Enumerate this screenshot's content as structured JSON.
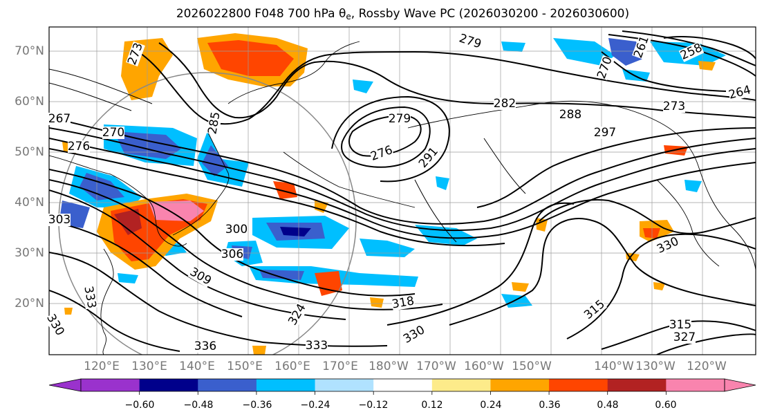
{
  "title": {
    "prefix": "2026022800 F048 700 hPa θ",
    "subscript": "e",
    "suffix": ", Rossby Wave PC (2026030200 - 2026030600)"
  },
  "lat_labels": [
    "70°N",
    "60°N",
    "50°N",
    "40°N",
    "30°N",
    "20°N"
  ],
  "lon_labels": [
    "120°E",
    "130°E",
    "140°E",
    "150°E",
    "160°E",
    "170°E",
    "180°W",
    "170°W",
    "160°W",
    "150°W",
    "140°W",
    "130°W",
    "120°W"
  ],
  "contour_labels": [
    "279",
    "282",
    "288",
    "297",
    "291",
    "276",
    "279",
    "300",
    "306",
    "309",
    "303",
    "267",
    "270",
    "276",
    "285",
    "273",
    "318",
    "324",
    "336",
    "333",
    "330",
    "315",
    "315",
    "330",
    "327",
    "264",
    "273",
    "258",
    "261",
    "270",
    "333",
    "330"
  ],
  "colorbar": {
    "ticks": [
      "−0.60",
      "−0.48",
      "−0.36",
      "−0.24",
      "−0.12",
      "0.12",
      "0.24",
      "0.36",
      "0.48",
      "0.60"
    ],
    "colors": [
      "#9a32cd",
      "#00008b",
      "#3a5fcd",
      "#00bfff",
      "#b0e2ff",
      "#ffffff",
      "#fdeb8a",
      "#ffa500",
      "#ff4500",
      "#b22222",
      "#f984ae",
      "#f984ae"
    ]
  }
}
